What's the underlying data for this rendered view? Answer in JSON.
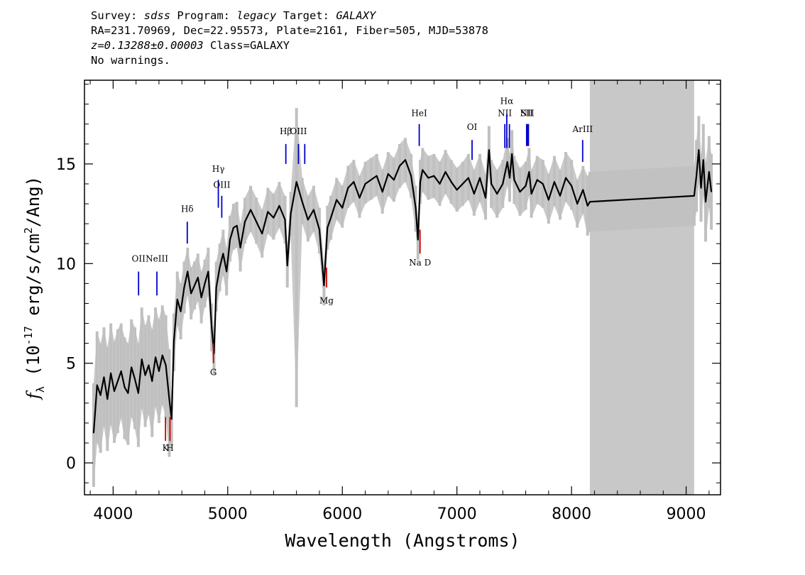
{
  "header": {
    "survey_label": "Survey:",
    "survey": "sdss",
    "program_label": "Program:",
    "program": "legacy",
    "target_label": "Target:",
    "target": "GALAXY",
    "line2": "RA=231.70969, Dec=22.95573, Plate=2161, Fiber=505, MJD=53878",
    "redshift": "z=0.13288±0.00003",
    "class": "Class=GALAXY",
    "warnings": "No warnings."
  },
  "colors": {
    "flux": "#000000",
    "error": "#c0c0c0",
    "emission": "#0000cc",
    "absorption": "#cc0000",
    "masked_region": "#c8c8c8"
  },
  "chart_data": {
    "type": "line",
    "title": "",
    "xlabel": "Wavelength (Angstroms)",
    "ylabel": "f_λ (10^-17 erg/s/cm^2/Ang)",
    "xlim": [
      3750,
      9300
    ],
    "ylim": [
      -1.6,
      19.2
    ],
    "xticks": [
      4000,
      5000,
      6000,
      7000,
      8000,
      9000
    ],
    "yticks": [
      0,
      5,
      10,
      15
    ],
    "grid": false,
    "masked_band": [
      8160,
      9070
    ],
    "series": [
      {
        "style": "flux",
        "x": [
          3830,
          3860,
          3890,
          3920,
          3950,
          3980,
          4010,
          4040,
          4070,
          4100,
          4130,
          4160,
          4190,
          4220,
          4250,
          4280,
          4310,
          4340,
          4370,
          4400,
          4430,
          4460,
          4490,
          4510,
          4530,
          4560,
          4590,
          4620,
          4650,
          4680,
          4710,
          4740,
          4770,
          4800,
          4830,
          4860,
          4880,
          4900,
          4930,
          4960,
          4990,
          5020,
          5050,
          5080,
          5110,
          5150,
          5200,
          5250,
          5300,
          5350,
          5400,
          5450,
          5500,
          5520,
          5550,
          5600,
          5650,
          5700,
          5750,
          5800,
          5840,
          5870,
          5900,
          5950,
          6000,
          6050,
          6100,
          6150,
          6200,
          6250,
          6300,
          6350,
          6400,
          6450,
          6500,
          6550,
          6600,
          6640,
          6660,
          6680,
          6700,
          6750,
          6800,
          6850,
          6900,
          6950,
          7000,
          7050,
          7100,
          7150,
          7200,
          7250,
          7280,
          7300,
          7350,
          7400,
          7440,
          7460,
          7480,
          7500,
          7550,
          7600,
          7630,
          7650,
          7700,
          7750,
          7800,
          7850,
          7900,
          7950,
          8000,
          8050,
          8100,
          8140,
          8160,
          9070,
          9090,
          9110,
          9130,
          9150,
          9170,
          9200,
          9220
        ],
        "y": [
          1.5,
          3.9,
          3.4,
          4.3,
          3.2,
          4.5,
          3.6,
          4.1,
          4.6,
          3.8,
          3.5,
          4.8,
          4.2,
          3.5,
          5.2,
          4.4,
          4.9,
          4.1,
          5.3,
          4.6,
          5.4,
          4.9,
          3.2,
          2.2,
          6.1,
          8.2,
          7.6,
          8.8,
          9.6,
          8.5,
          8.9,
          9.3,
          8.3,
          9.0,
          9.6,
          6.8,
          5.5,
          8.8,
          9.8,
          10.5,
          9.6,
          11.2,
          11.8,
          11.9,
          10.8,
          12.1,
          12.7,
          12.1,
          11.5,
          12.6,
          12.3,
          12.9,
          12.2,
          9.9,
          12.5,
          14.1,
          13.1,
          12.2,
          12.7,
          11.7,
          8.9,
          11.8,
          12.3,
          13.2,
          12.8,
          13.8,
          14.1,
          13.3,
          14.0,
          14.2,
          14.4,
          13.6,
          14.5,
          14.2,
          14.9,
          15.2,
          14.4,
          12.8,
          11.2,
          14.1,
          14.7,
          14.3,
          14.4,
          14.0,
          14.6,
          14.1,
          13.7,
          14.0,
          14.3,
          13.5,
          14.3,
          13.3,
          15.7,
          14.0,
          13.5,
          14.0,
          15.1,
          14.3,
          15.5,
          14.2,
          13.6,
          13.9,
          14.6,
          13.5,
          14.2,
          14.0,
          13.2,
          14.1,
          13.4,
          14.3,
          13.9,
          13.0,
          13.7,
          12.9,
          13.1,
          13.4,
          14.4,
          15.7,
          13.8,
          15.2,
          13.1,
          14.6,
          13.6
        ]
      },
      {
        "style": "error",
        "x": [
          3830,
          3860,
          3890,
          3920,
          3950,
          3980,
          4010,
          4040,
          4070,
          4100,
          4130,
          4160,
          4190,
          4220,
          4250,
          4280,
          4310,
          4340,
          4370,
          4400,
          4430,
          4460,
          4490,
          4510,
          4530,
          4560,
          4590,
          4620,
          4650,
          4680,
          4710,
          4740,
          4770,
          4800,
          4830,
          4860,
          4880,
          4900,
          4930,
          4960,
          4990,
          5020,
          5050,
          5080,
          5110,
          5150,
          5200,
          5250,
          5300,
          5350,
          5400,
          5450,
          5500,
          5520,
          5550,
          5600,
          5650,
          5700,
          5750,
          5800,
          5840,
          5870,
          5900,
          5950,
          6000,
          6050,
          6100,
          6150,
          6200,
          6250,
          6300,
          6350,
          6400,
          6450,
          6500,
          6550,
          6600,
          6640,
          6660,
          6680,
          6700,
          6750,
          6800,
          6850,
          6900,
          6950,
          7000,
          7050,
          7100,
          7150,
          7200,
          7250,
          7280,
          7300,
          7350,
          7400,
          7440,
          7460,
          7480,
          7500,
          7550,
          7600,
          7630,
          7650,
          7700,
          7750,
          7800,
          7850,
          7900,
          7950,
          8000,
          8050,
          8100,
          8140,
          8160,
          9070,
          9090,
          9110,
          9130,
          9150,
          9170,
          9200,
          9220
        ],
        "y_low": [
          -1.2,
          1.0,
          0.5,
          1.8,
          0.6,
          1.9,
          1.0,
          1.5,
          2.2,
          1.2,
          0.9,
          2.3,
          1.7,
          0.8,
          2.7,
          1.8,
          2.4,
          1.3,
          2.8,
          2.0,
          2.9,
          2.3,
          0.3,
          0.9,
          4.6,
          6.9,
          6.2,
          7.5,
          8.4,
          7.2,
          7.7,
          8.1,
          7.0,
          7.8,
          8.4,
          5.6,
          4.4,
          7.6,
          8.6,
          9.4,
          8.4,
          10.1,
          10.7,
          10.8,
          9.6,
          11.0,
          11.6,
          11.0,
          10.3,
          11.5,
          11.2,
          11.8,
          11.0,
          8.8,
          11.4,
          2.8,
          12.0,
          11.1,
          11.6,
          10.5,
          7.9,
          10.7,
          11.2,
          12.2,
          11.8,
          12.8,
          13.1,
          12.3,
          13.0,
          13.2,
          13.4,
          12.5,
          13.4,
          13.1,
          13.8,
          14.1,
          13.3,
          11.6,
          10.2,
          13.0,
          13.6,
          13.2,
          13.3,
          12.9,
          13.5,
          13.0,
          12.6,
          12.9,
          13.2,
          12.4,
          13.1,
          12.2,
          14.5,
          12.8,
          12.3,
          12.8,
          13.9,
          13.1,
          14.3,
          13.0,
          12.4,
          12.7,
          13.4,
          12.3,
          13.0,
          12.8,
          12.0,
          12.9,
          12.2,
          13.1,
          12.7,
          11.8,
          12.5,
          11.4,
          11.6,
          11.9,
          12.6,
          14.0,
          12.1,
          13.4,
          11.1,
          12.8,
          11.7
        ],
        "y_high": [
          4.0,
          6.6,
          6.0,
          6.8,
          5.8,
          7.0,
          6.1,
          6.7,
          7.0,
          6.3,
          6.0,
          7.2,
          6.8,
          6.0,
          7.8,
          6.9,
          7.4,
          6.7,
          7.8,
          7.2,
          7.9,
          7.4,
          5.7,
          3.4,
          7.5,
          9.6,
          9.0,
          10.1,
          10.8,
          9.8,
          10.1,
          10.5,
          9.6,
          10.2,
          10.8,
          8.0,
          6.6,
          10.1,
          11.0,
          11.7,
          10.8,
          12.4,
          13.0,
          13.1,
          12.0,
          13.3,
          13.9,
          13.3,
          12.7,
          13.8,
          13.5,
          14.1,
          13.4,
          11.0,
          13.6,
          17.8,
          14.3,
          13.4,
          13.9,
          12.8,
          10.0,
          12.9,
          13.4,
          14.3,
          13.9,
          14.9,
          15.2,
          14.4,
          15.1,
          15.3,
          15.5,
          14.7,
          15.6,
          15.3,
          16.0,
          16.3,
          15.5,
          13.9,
          12.3,
          15.2,
          15.8,
          15.4,
          15.5,
          15.1,
          15.7,
          15.2,
          14.8,
          15.1,
          15.5,
          14.7,
          15.5,
          14.5,
          16.9,
          15.2,
          14.7,
          15.2,
          16.3,
          15.5,
          16.7,
          15.4,
          14.8,
          15.1,
          15.8,
          14.7,
          15.4,
          15.2,
          14.5,
          15.4,
          14.7,
          15.6,
          15.2,
          14.2,
          14.9,
          14.4,
          14.6,
          14.9,
          16.2,
          17.4,
          15.5,
          17.0,
          15.1,
          16.4,
          15.5
        ]
      }
    ],
    "line_markers": [
      {
        "label": "OII",
        "wavelength": 4222,
        "kind": "emission",
        "mark": [
          8.4,
          9.6
        ],
        "label_y": 10.1
      },
      {
        "label": "NeIII",
        "wavelength": 4382,
        "kind": "emission",
        "mark": [
          8.4,
          9.6
        ],
        "label_y": 10.1
      },
      {
        "label": "Hδ",
        "wavelength": 4647,
        "kind": "emission",
        "mark": [
          11.0,
          12.1
        ],
        "label_y": 12.6
      },
      {
        "label": "Hγ",
        "wavelength": 4918,
        "kind": "emission",
        "mark": [
          12.8,
          14.2
        ],
        "label_y": 14.6
      },
      {
        "label": "OIII",
        "wavelength": 4948,
        "kind": "emission",
        "mark": [
          12.3,
          13.4
        ],
        "label_y": 13.8
      },
      {
        "label": "Hβ",
        "wavelength": 5507,
        "kind": "emission",
        "mark": [
          15.0,
          16.0
        ],
        "label_y": 16.5
      },
      {
        "label": "OIII",
        "wavelength": 5617,
        "kind": "emission",
        "mark": [
          15.0,
          16.0
        ],
        "label_y": 16.5
      },
      {
        "label": "OIII",
        "wavelength": 5672,
        "kind": "emission",
        "mark": [
          15.0,
          16.0
        ],
        "label_y": null
      },
      {
        "label": "HeI",
        "wavelength": 6671,
        "kind": "emission",
        "mark": [
          15.9,
          17.0
        ],
        "label_y": 17.4
      },
      {
        "label": "OI",
        "wavelength": 7132,
        "kind": "emission",
        "mark": [
          15.2,
          16.2
        ],
        "label_y": 16.7
      },
      {
        "label": "NII",
        "wavelength": 7418,
        "kind": "emission",
        "mark": [
          15.8,
          17.0
        ],
        "label_y": 17.4
      },
      {
        "label": "Hα",
        "wavelength": 7435,
        "kind": "emission",
        "mark": [
          15.8,
          17.5
        ],
        "label_y": 18.0
      },
      {
        "label": "NII",
        "wavelength": 7458,
        "kind": "emission",
        "mark": [
          15.8,
          17.0
        ],
        "label_y": null
      },
      {
        "label": "NII",
        "wavelength": 7613,
        "kind": "emission",
        "mark": [
          15.9,
          17.0
        ],
        "label_y": 17.4
      },
      {
        "label": "SII",
        "wavelength": 7608,
        "kind": "emission",
        "mark": [
          15.9,
          17.0
        ],
        "label_y": 17.4
      },
      {
        "label": "SII",
        "wavelength": 7624,
        "kind": "emission",
        "mark": [
          15.9,
          17.0
        ],
        "label_y": null
      },
      {
        "label": "ArIII",
        "wavelength": 8097,
        "kind": "emission",
        "mark": [
          15.1,
          16.2
        ],
        "label_y": 16.6
      },
      {
        "label": "K",
        "wavelength": 4457,
        "kind": "absorption",
        "mark": [
          1.1,
          2.3
        ],
        "label_y": 0.6
      },
      {
        "label": "H",
        "wavelength": 4496,
        "kind": "absorption",
        "mark": [
          1.1,
          2.3
        ],
        "label_y": 0.6
      },
      {
        "label": "G",
        "wavelength": 4875,
        "kind": "absorption",
        "mark": [
          5.0,
          6.0
        ],
        "label_y": 4.4
      },
      {
        "label": "Mg",
        "wavelength": 5862,
        "kind": "absorption",
        "mark": [
          8.8,
          9.8
        ],
        "label_y": 8.0
      },
      {
        "label": "Na  D",
        "wavelength": 6678,
        "kind": "absorption",
        "mark": [
          10.5,
          11.7
        ],
        "label_y": 9.9
      }
    ]
  }
}
